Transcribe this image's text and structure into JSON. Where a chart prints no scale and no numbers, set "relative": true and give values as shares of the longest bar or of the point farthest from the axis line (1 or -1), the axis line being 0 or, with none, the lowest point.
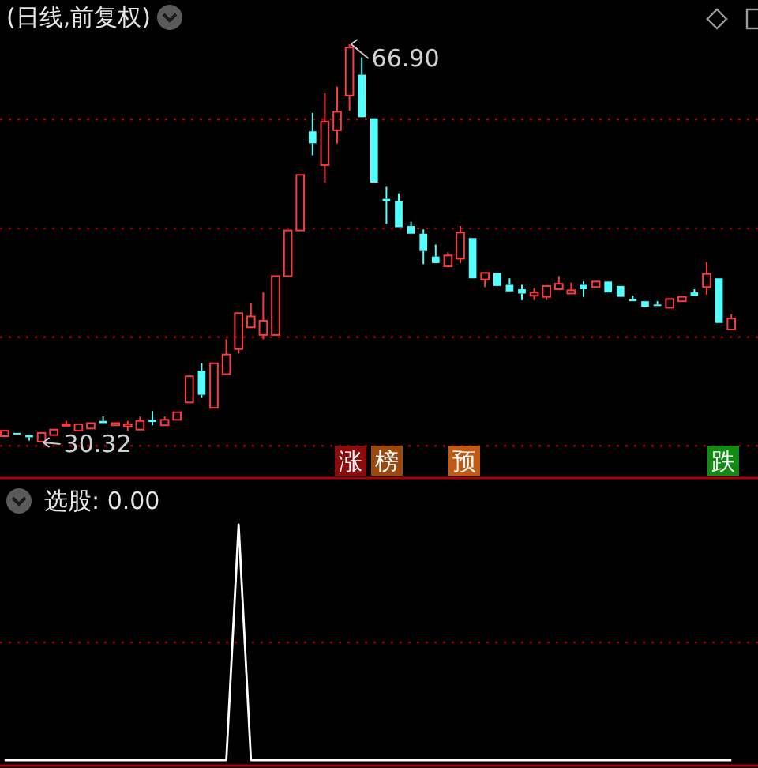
{
  "chart_data": [
    {
      "type": "candlestick",
      "title": "(日线,前复权)",
      "categories": [
        null,
        null,
        null,
        null,
        null,
        null,
        null,
        null,
        null,
        null,
        null,
        null,
        null,
        null,
        null,
        null,
        null,
        null,
        null,
        null,
        null,
        null,
        null,
        null,
        null,
        null,
        null,
        null,
        null,
        null,
        null,
        null,
        null,
        null,
        null,
        null,
        null,
        null,
        null,
        null,
        null,
        null,
        null,
        null,
        null,
        null,
        null,
        null,
        null,
        null,
        null,
        null,
        null,
        null,
        null,
        null,
        null,
        null,
        null,
        null
      ],
      "ohlc": [
        [
          30.9,
          31.5,
          30.8,
          31.4
        ],
        [
          31.2,
          31.4,
          31.0,
          31.1
        ],
        [
          31.0,
          31.2,
          30.5,
          30.8
        ],
        [
          30.4,
          31.3,
          30.32,
          31.2
        ],
        [
          31.0,
          31.6,
          30.9,
          31.5
        ],
        [
          31.9,
          32.3,
          31.8,
          32.0
        ],
        [
          31.4,
          32.2,
          31.4,
          32.0
        ],
        [
          31.6,
          32.3,
          31.6,
          32.1
        ],
        [
          32.3,
          32.7,
          32.0,
          32.1
        ],
        [
          31.9,
          32.2,
          31.8,
          32.1
        ],
        [
          31.8,
          32.3,
          31.4,
          32.0
        ],
        [
          31.5,
          32.7,
          31.4,
          32.3
        ],
        [
          32.4,
          33.2,
          31.9,
          32.2
        ],
        [
          31.9,
          32.7,
          31.8,
          32.4
        ],
        [
          32.4,
          33.2,
          32.3,
          33.1
        ],
        [
          34.0,
          36.4,
          34.0,
          36.4
        ],
        [
          36.9,
          37.6,
          34.4,
          34.7
        ],
        [
          33.5,
          37.6,
          33.5,
          37.6
        ],
        [
          36.6,
          39.8,
          36.6,
          38.4
        ],
        [
          38.9,
          42.3,
          38.5,
          42.2
        ],
        [
          40.9,
          43.1,
          40.9,
          41.9
        ],
        [
          40.2,
          44.1,
          39.8,
          41.5
        ],
        [
          40.2,
          45.6,
          40.2,
          45.6
        ],
        [
          45.6,
          50.0,
          45.6,
          49.8
        ],
        [
          49.8,
          55.0,
          49.8,
          54.9
        ],
        [
          58.9,
          60.6,
          56.7,
          57.8
        ],
        [
          55.8,
          62.4,
          54.2,
          59.8
        ],
        [
          59.0,
          63.0,
          57.8,
          60.7
        ],
        [
          62.2,
          66.9,
          60.8,
          66.6
        ],
        [
          64.1,
          65.7,
          60.2,
          60.2
        ],
        [
          60.1,
          60.2,
          54.2,
          54.2
        ],
        [
          52.7,
          53.8,
          50.4,
          52.5
        ],
        [
          52.5,
          53.2,
          50.0,
          50.1
        ],
        [
          50.2,
          50.6,
          49.4,
          49.5
        ],
        [
          49.5,
          49.9,
          46.7,
          47.9
        ],
        [
          47.4,
          48.5,
          46.8,
          46.8
        ],
        [
          46.5,
          47.8,
          46.3,
          47.5
        ],
        [
          47.2,
          50.2,
          46.8,
          49.6
        ],
        [
          49.1,
          49.1,
          45.3,
          45.4
        ],
        [
          45.3,
          46.1,
          44.6,
          45.9
        ],
        [
          45.9,
          46.0,
          44.6,
          44.7
        ],
        [
          44.8,
          45.4,
          44.2,
          44.2
        ],
        [
          44.4,
          44.8,
          43.4,
          44.0
        ],
        [
          43.8,
          44.5,
          43.4,
          44.1
        ],
        [
          43.7,
          44.9,
          43.4,
          44.7
        ],
        [
          44.4,
          45.6,
          44.2,
          44.9
        ],
        [
          44.0,
          45.0,
          44.0,
          44.3
        ],
        [
          44.8,
          45.1,
          43.7,
          44.4
        ],
        [
          44.6,
          45.2,
          44.6,
          45.1
        ],
        [
          45.1,
          45.2,
          44.0,
          44.1
        ],
        [
          44.7,
          44.7,
          43.7,
          43.7
        ],
        [
          43.5,
          43.8,
          43.3,
          43.3
        ],
        [
          43.3,
          43.5,
          42.7,
          42.8
        ],
        [
          43.0,
          43.3,
          42.9,
          42.9
        ],
        [
          42.7,
          43.6,
          42.7,
          43.5
        ],
        [
          43.3,
          43.8,
          43.3,
          43.7
        ],
        [
          44.1,
          44.4,
          43.8,
          43.8
        ],
        [
          44.6,
          46.9,
          43.9,
          45.8
        ],
        [
          45.4,
          45.6,
          41.3,
          41.3
        ],
        [
          40.7,
          42.1,
          40.7,
          41.7
        ]
      ],
      "yticks": [
        {
          "value": 30,
          "label": null
        },
        {
          "value": 40,
          "label": null
        },
        {
          "value": 50,
          "label": null
        },
        {
          "value": 60,
          "label": null
        }
      ],
      "grid": "y",
      "annotations": [
        "66.90",
        "30.32",
        "涨",
        "榜",
        "预",
        "跌"
      ]
    },
    {
      "type": "line",
      "title": "选股: 0.00",
      "relative": true,
      "categories": [
        null,
        null,
        null,
        null,
        null,
        null,
        null,
        null,
        null,
        null,
        null,
        null,
        null,
        null,
        null,
        null,
        null,
        null,
        null,
        null,
        null,
        null,
        null,
        null,
        null,
        null,
        null,
        null,
        null,
        null,
        null,
        null,
        null,
        null,
        null,
        null,
        null,
        null,
        null,
        null,
        null,
        null,
        null,
        null,
        null,
        null,
        null,
        null,
        null,
        null,
        null,
        null,
        null,
        null,
        null,
        null,
        null,
        null,
        null,
        null
      ],
      "series": [
        {
          "color": "#ffffff",
          "values": [
            0,
            0,
            0,
            0,
            0,
            0,
            0,
            0,
            0,
            0,
            0,
            0,
            0,
            0,
            0,
            0,
            0,
            0,
            0,
            1,
            0,
            0,
            0,
            0,
            0,
            0,
            0,
            0,
            0,
            0,
            0,
            0,
            0,
            0,
            0,
            0,
            0,
            0,
            0,
            0,
            0,
            0,
            0,
            0,
            0,
            0,
            0,
            0,
            0,
            0,
            0,
            0,
            0,
            0,
            0,
            0,
            0,
            0,
            0,
            0
          ]
        }
      ],
      "ref_lines": [
        {
          "axis": "y",
          "value": 0.5,
          "color": "#a00000",
          "line_style": "dotted"
        }
      ]
    }
  ]
}
